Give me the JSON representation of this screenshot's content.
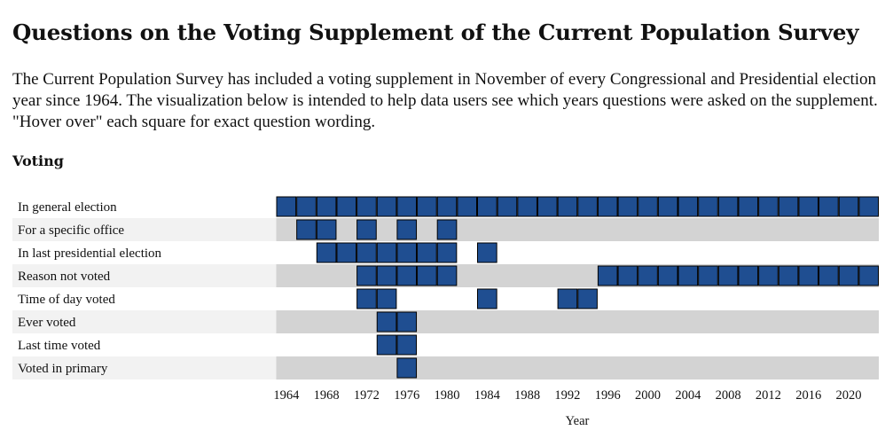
{
  "page": {
    "title": "Questions on the Voting Supplement of the Current Population Survey",
    "intro": "The Current Population Survey has included a voting supplement in November of every Congressional and Presidential election year since 1964. The visualization below is intended to help data users see which years questions were asked on the supplement. \"Hover over\" each square for exact question wording.",
    "section": "Voting"
  },
  "colors": {
    "cell": "#1f4e91",
    "band_light": "#f2f2f2",
    "band_gray": "#d3d3d3",
    "background": "#ffffff"
  },
  "chart_data": {
    "type": "heatmap",
    "title": "Voting",
    "xlabel": "Year",
    "ylabel": "",
    "x_domain": [
      1964,
      2022
    ],
    "x_step": 2,
    "xticks": [
      1964,
      1968,
      1972,
      1976,
      1980,
      1984,
      1988,
      1992,
      1996,
      2000,
      2004,
      2008,
      2012,
      2016,
      2020
    ],
    "rows": [
      {
        "label": "In general election",
        "years": [
          1964,
          1966,
          1968,
          1970,
          1972,
          1974,
          1976,
          1978,
          1980,
          1982,
          1984,
          1986,
          1988,
          1990,
          1992,
          1994,
          1996,
          1998,
          2000,
          2002,
          2004,
          2006,
          2008,
          2010,
          2012,
          2014,
          2016,
          2018,
          2020,
          2022
        ]
      },
      {
        "label": "For a specific office",
        "years": [
          1966,
          1968,
          1972,
          1976,
          1980
        ]
      },
      {
        "label": "In last presidential election",
        "years": [
          1968,
          1970,
          1972,
          1974,
          1976,
          1978,
          1980,
          1984
        ]
      },
      {
        "label": "Reason not voted",
        "years": [
          1972,
          1974,
          1976,
          1978,
          1980,
          1996,
          1998,
          2000,
          2002,
          2004,
          2006,
          2008,
          2010,
          2012,
          2014,
          2016,
          2018,
          2020,
          2022
        ]
      },
      {
        "label": "Time of day voted",
        "years": [
          1972,
          1974,
          1984,
          1992,
          1994
        ]
      },
      {
        "label": "Ever voted",
        "years": [
          1974,
          1976
        ]
      },
      {
        "label": "Last time voted",
        "years": [
          1974,
          1976
        ]
      },
      {
        "label": "Voted in primary",
        "years": [
          1976
        ]
      }
    ]
  }
}
